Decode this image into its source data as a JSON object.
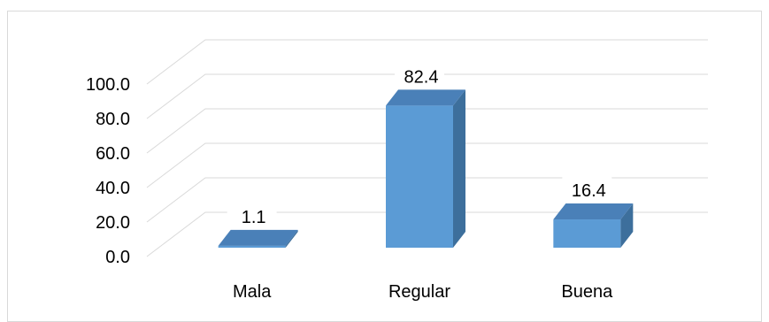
{
  "chart_data": {
    "type": "bar",
    "style": "3d-column",
    "categories": [
      "Mala",
      "Regular",
      "Buena"
    ],
    "values": [
      1.1,
      82.4,
      16.4
    ],
    "data_labels": [
      "1.1",
      "82.4",
      "16.4"
    ],
    "y_ticks": [
      "0.0",
      "20.0",
      "40.0",
      "60.0",
      "80.0",
      "100.0"
    ],
    "ylim": [
      0,
      100
    ],
    "grid": true,
    "legend": "none",
    "title": "",
    "xlabel": "",
    "ylabel": "",
    "colors": {
      "front": "#5b9bd5",
      "side": "#3d6f9c",
      "top": "#4a80b8",
      "grid": "#d9d9d9"
    }
  }
}
